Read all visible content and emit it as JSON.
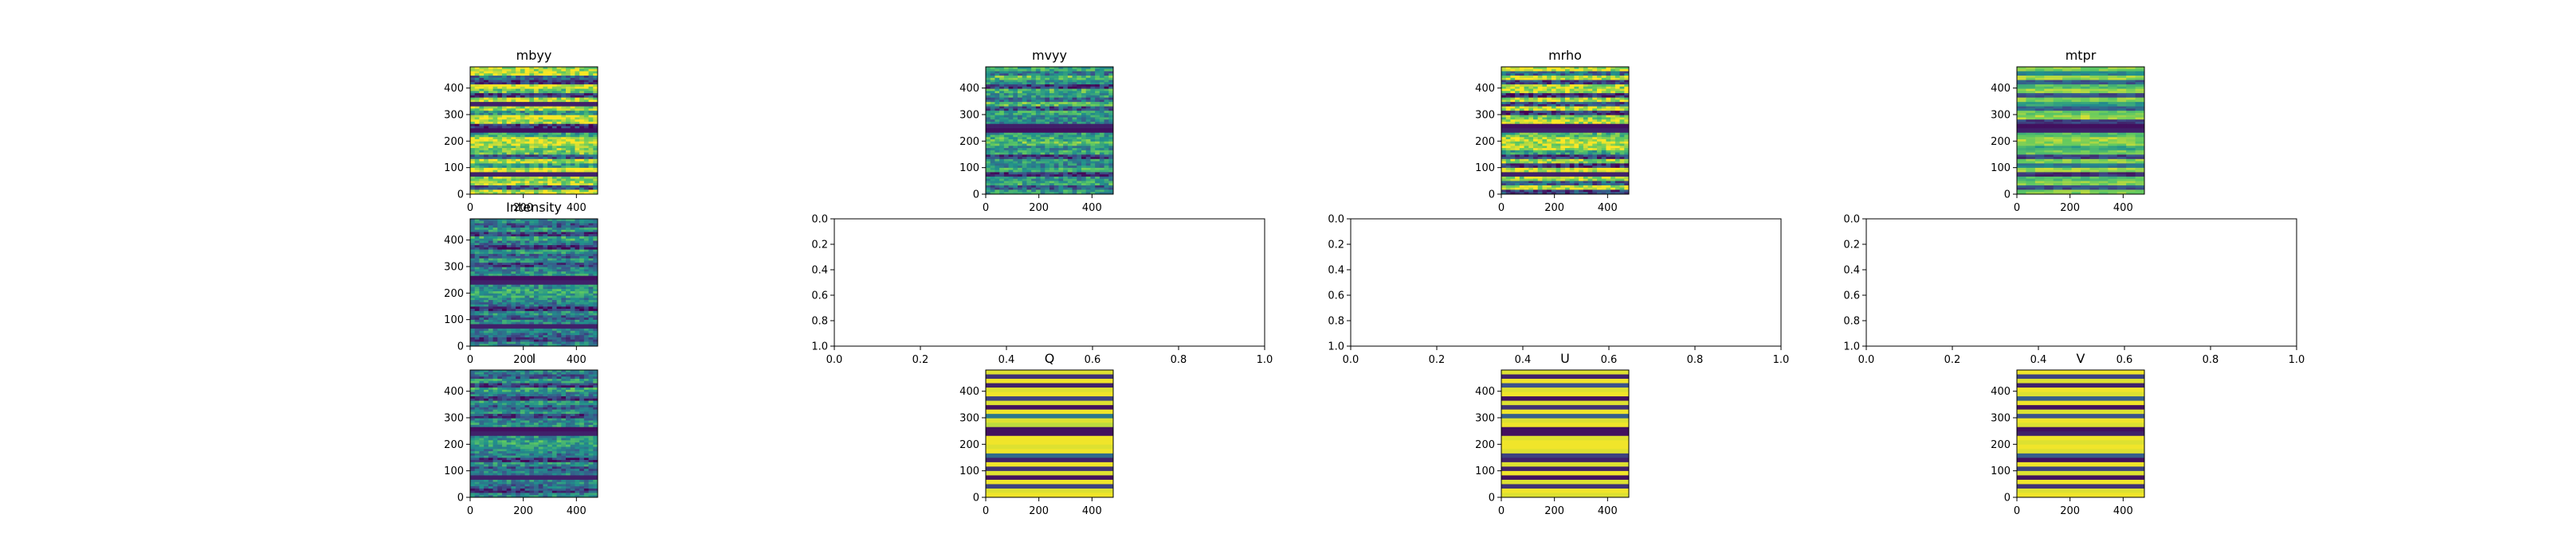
{
  "figure": {
    "background": "#ffffff"
  },
  "colormap": [
    "#440154",
    "#3b528b",
    "#21918c",
    "#5ec962",
    "#fde725"
  ],
  "chart_data": [
    {
      "id": "mbyy",
      "type": "heatmap",
      "title": "mbyy",
      "xlim": [
        0,
        480
      ],
      "ylim": [
        480,
        0
      ],
      "xticks": [
        "0",
        "200",
        "400"
      ],
      "yticks": [
        "0",
        "100",
        "200",
        "300",
        "400"
      ],
      "rows": 480,
      "cols": 480,
      "texture": "banded",
      "colormap": "viridis",
      "row_bands": [
        0.85,
        0.92,
        0.35,
        0.15,
        0.95,
        0.75,
        0.2,
        0.9,
        0.1,
        0.85,
        0.5,
        0.95,
        0.9,
        0.15,
        0.05,
        0.6,
        0.95,
        0.9,
        0.8,
        0.75,
        0.3,
        0.9,
        0.55,
        0.92,
        0.1,
        0.8,
        0.88,
        0.25,
        0.9
      ]
    },
    {
      "id": "mvyy",
      "type": "heatmap",
      "title": "mvyy",
      "xlim": [
        0,
        480
      ],
      "ylim": [
        480,
        0
      ],
      "xticks": [
        "0",
        "200",
        "400"
      ],
      "yticks": [
        "0",
        "100",
        "200",
        "300",
        "400"
      ],
      "rows": 480,
      "cols": 480,
      "texture": "noisy",
      "colormap": "viridis",
      "row_bands": [
        0.6,
        0.4,
        0.7,
        0.5,
        0.15,
        0.65,
        0.55,
        0.35,
        0.7,
        0.25,
        0.6,
        0.5,
        0.45,
        0.1,
        0.05,
        0.55,
        0.65,
        0.7,
        0.5,
        0.6,
        0.2,
        0.55,
        0.45,
        0.6,
        0.15,
        0.5,
        0.6,
        0.3,
        0.55
      ]
    },
    {
      "id": "mrho",
      "type": "heatmap",
      "title": "mrho",
      "xlim": [
        0,
        480
      ],
      "ylim": [
        480,
        0
      ],
      "xticks": [
        "0",
        "200",
        "400"
      ],
      "yticks": [
        "0",
        "100",
        "200",
        "300",
        "400"
      ],
      "rows": 480,
      "cols": 480,
      "texture": "banded",
      "colormap": "viridis",
      "row_bands": [
        0.9,
        0.35,
        0.92,
        0.2,
        0.85,
        0.9,
        0.15,
        0.88,
        0.25,
        0.9,
        0.15,
        0.8,
        0.92,
        0.05,
        0.1,
        0.7,
        0.9,
        0.88,
        0.92,
        0.6,
        0.2,
        0.85,
        0.15,
        0.9,
        0.1,
        0.85,
        0.3,
        0.9,
        0.2
      ]
    },
    {
      "id": "mtpr",
      "type": "heatmap",
      "title": "mtpr",
      "xlim": [
        0,
        480
      ],
      "ylim": [
        480,
        0
      ],
      "xticks": [
        "0",
        "200",
        "400"
      ],
      "yticks": [
        "0",
        "100",
        "200",
        "300",
        "400"
      ],
      "rows": 480,
      "cols": 480,
      "texture": "semi",
      "colormap": "viridis",
      "row_bands": [
        0.8,
        0.45,
        0.85,
        0.3,
        0.7,
        0.85,
        0.25,
        0.8,
        0.55,
        0.3,
        0.75,
        0.85,
        0.2,
        0.05,
        0.1,
        0.7,
        0.85,
        0.8,
        0.6,
        0.75,
        0.2,
        0.8,
        0.4,
        0.85,
        0.15,
        0.7,
        0.8,
        0.25,
        0.8
      ]
    },
    {
      "id": "intensity",
      "type": "heatmap",
      "title": "Intensity",
      "xlim": [
        0,
        480
      ],
      "ylim": [
        480,
        0
      ],
      "xticks": [
        "0",
        "200",
        "400"
      ],
      "yticks": [
        "0",
        "100",
        "200",
        "300",
        "400"
      ],
      "rows": 480,
      "cols": 480,
      "texture": "noisy",
      "colormap": "viridis",
      "row_bands": [
        0.45,
        0.3,
        0.55,
        0.2,
        0.6,
        0.4,
        0.15,
        0.55,
        0.3,
        0.5,
        0.2,
        0.45,
        0.5,
        0.05,
        0.1,
        0.5,
        0.6,
        0.55,
        0.45,
        0.4,
        0.15,
        0.5,
        0.3,
        0.45,
        0.1,
        0.45,
        0.35,
        0.2,
        0.45
      ]
    },
    {
      "id": "empty-1",
      "type": "scatter",
      "title": "",
      "xlim": [
        0,
        1
      ],
      "ylim": [
        0,
        1
      ],
      "xticks": [
        "0.0",
        "0.2",
        "0.4",
        "0.6",
        "0.8",
        "1.0"
      ],
      "yticks": [
        "0.0",
        "0.2",
        "0.4",
        "0.6",
        "0.8",
        "1.0"
      ],
      "series": []
    },
    {
      "id": "empty-2",
      "type": "scatter",
      "title": "",
      "xlim": [
        0,
        1
      ],
      "ylim": [
        0,
        1
      ],
      "xticks": [
        "0.0",
        "0.2",
        "0.4",
        "0.6",
        "0.8",
        "1.0"
      ],
      "yticks": [
        "0.0",
        "0.2",
        "0.4",
        "0.6",
        "0.8",
        "1.0"
      ],
      "series": []
    },
    {
      "id": "empty-3",
      "type": "scatter",
      "title": "",
      "xlim": [
        0,
        1
      ],
      "ylim": [
        0,
        1
      ],
      "xticks": [
        "0.0",
        "0.2",
        "0.4",
        "0.6",
        "0.8",
        "1.0"
      ],
      "yticks": [
        "0.0",
        "0.2",
        "0.4",
        "0.6",
        "0.8",
        "1.0"
      ],
      "series": []
    },
    {
      "id": "I",
      "type": "heatmap",
      "title": "I",
      "xlim": [
        0,
        480
      ],
      "ylim": [
        480,
        0
      ],
      "xticks": [
        "0",
        "200",
        "400"
      ],
      "yticks": [
        "0",
        "100",
        "200",
        "300",
        "400"
      ],
      "rows": 480,
      "cols": 480,
      "texture": "noisy",
      "colormap": "viridis",
      "row_bands": [
        0.45,
        0.3,
        0.55,
        0.2,
        0.6,
        0.4,
        0.15,
        0.55,
        0.3,
        0.5,
        0.2,
        0.45,
        0.5,
        0.05,
        0.1,
        0.5,
        0.6,
        0.55,
        0.45,
        0.4,
        0.15,
        0.5,
        0.3,
        0.45,
        0.1,
        0.45,
        0.35,
        0.2,
        0.45
      ]
    },
    {
      "id": "Q",
      "type": "heatmap",
      "title": "Q",
      "xlim": [
        0,
        480
      ],
      "ylim": [
        480,
        0
      ],
      "xticks": [
        "0",
        "200",
        "400"
      ],
      "yticks": [
        "0",
        "100",
        "200",
        "300",
        "400"
      ],
      "rows": 480,
      "cols": 480,
      "texture": "flat",
      "colormap": "viridis",
      "row_bands": [
        0.95,
        0.15,
        0.98,
        0.1,
        0.95,
        0.98,
        0.2,
        0.95,
        0.05,
        0.98,
        0.4,
        0.95,
        0.9,
        0.05,
        0.05,
        0.98,
        0.98,
        0.95,
        0.98,
        0.35,
        0.1,
        0.98,
        0.15,
        0.95,
        0.05,
        0.98,
        0.2,
        0.95,
        0.98
      ]
    },
    {
      "id": "U",
      "type": "heatmap",
      "title": "U",
      "xlim": [
        0,
        480
      ],
      "ylim": [
        480,
        0
      ],
      "xticks": [
        "0",
        "200",
        "400"
      ],
      "yticks": [
        "0",
        "100",
        "200",
        "300",
        "400"
      ],
      "rows": 480,
      "cols": 480,
      "texture": "flat",
      "colormap": "viridis",
      "row_bands": [
        0.95,
        0.1,
        0.98,
        0.25,
        0.95,
        0.98,
        0.05,
        0.95,
        0.15,
        0.98,
        0.3,
        0.95,
        0.98,
        0.05,
        0.05,
        0.95,
        0.98,
        0.98,
        0.95,
        0.2,
        0.1,
        0.95,
        0.1,
        0.98,
        0.05,
        0.95,
        0.15,
        0.98,
        0.95
      ]
    },
    {
      "id": "V",
      "type": "heatmap",
      "title": "V",
      "xlim": [
        0,
        480
      ],
      "ylim": [
        480,
        0
      ],
      "xticks": [
        "0",
        "200",
        "400"
      ],
      "yticks": [
        "0",
        "100",
        "200",
        "300",
        "400"
      ],
      "rows": 480,
      "cols": 480,
      "texture": "flat",
      "colormap": "viridis",
      "row_bands": [
        0.98,
        0.2,
        0.95,
        0.1,
        0.98,
        0.95,
        0.3,
        0.98,
        0.05,
        0.95,
        0.25,
        0.98,
        0.95,
        0.05,
        0.1,
        0.98,
        0.95,
        0.98,
        0.95,
        0.3,
        0.05,
        0.98,
        0.2,
        0.95,
        0.05,
        0.98,
        0.15,
        0.95,
        0.98
      ]
    }
  ]
}
